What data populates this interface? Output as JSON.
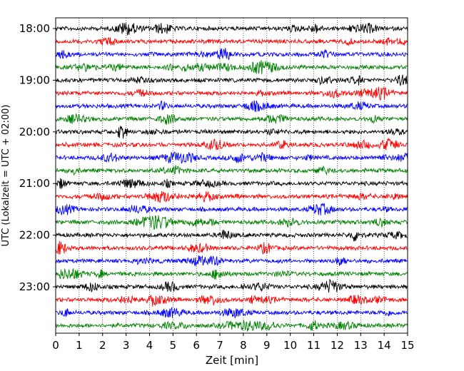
{
  "chart_data": {
    "type": "line",
    "subtype": "helicorder",
    "xlabel": "Zeit  [min]",
    "ylabel": "UTC (Lokalzeit = UTC + 02:00)",
    "xlim": [
      0,
      15
    ],
    "x_ticks": [
      "0",
      "1",
      "2",
      "3",
      "4",
      "5",
      "6",
      "7",
      "8",
      "9",
      "10",
      "11",
      "12",
      "13",
      "14",
      "15"
    ],
    "y_ticks": [
      "18:00",
      "19:00",
      "20:00",
      "21:00",
      "22:00",
      "23:00"
    ],
    "vertical_grid": "dotted, every minute",
    "row_interval_minutes": 15,
    "row_start_times": [
      "18:00",
      "18:15",
      "18:30",
      "18:45",
      "19:00",
      "19:15",
      "19:30",
      "19:45",
      "20:00",
      "20:15",
      "20:30",
      "20:45",
      "21:00",
      "21:15",
      "21:30",
      "21:45",
      "22:00",
      "22:15",
      "22:30",
      "22:45",
      "23:00",
      "23:15",
      "23:30",
      "23:45"
    ],
    "series_colors": [
      "#000000",
      "#ff0000",
      "#0000ff",
      "#008000"
    ]
  }
}
